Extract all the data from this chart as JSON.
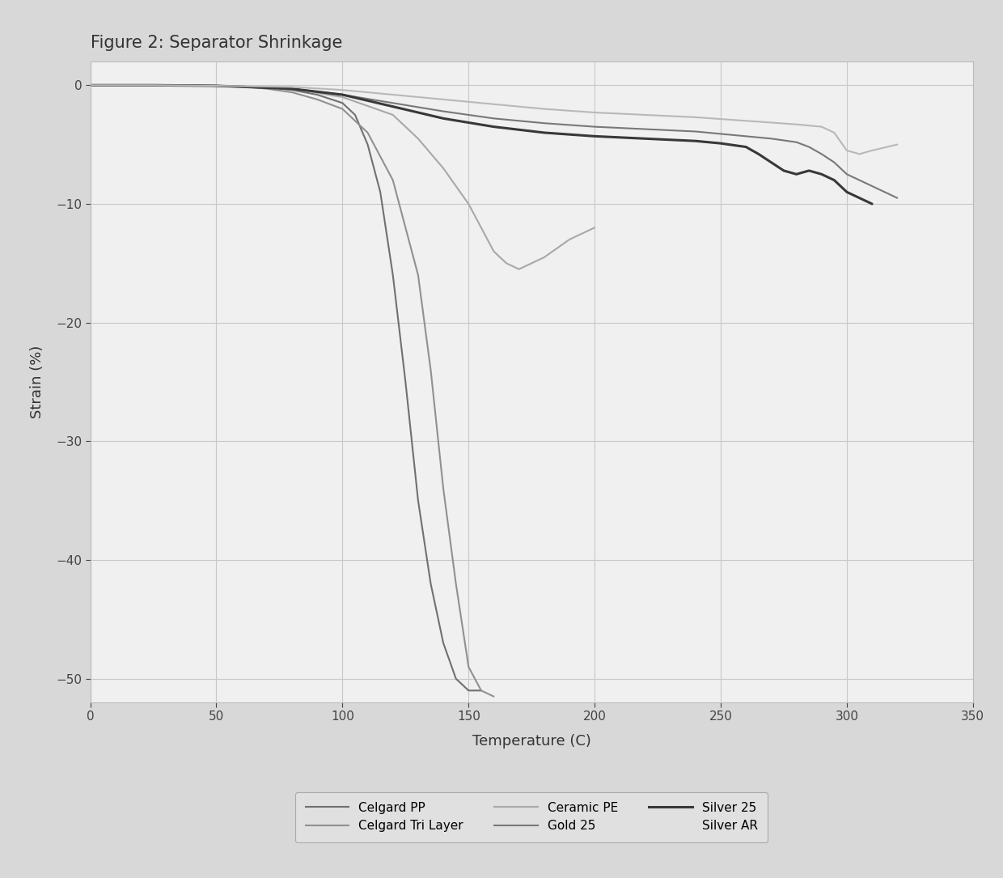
{
  "title": "Figure 2: Separator Shrinkage",
  "xlabel": "Temperature (C)",
  "ylabel": "Strain (%)",
  "xlim": [
    0,
    350
  ],
  "ylim": [
    -52,
    2
  ],
  "xticks": [
    0,
    50,
    100,
    150,
    200,
    250,
    300,
    350
  ],
  "yticks": [
    0,
    -10,
    -20,
    -30,
    -40,
    -50
  ],
  "fig_bg_color": "#d8d8d8",
  "plot_bg_color": "#f0f0f0",
  "grid_color": "#c8c8c8",
  "series": [
    {
      "name": "Celgard PP",
      "color": "#707070",
      "linewidth": 1.5,
      "x": [
        0,
        25,
        50,
        60,
        70,
        80,
        90,
        100,
        105,
        110,
        115,
        120,
        125,
        130,
        135,
        140,
        145,
        150,
        155
      ],
      "y": [
        0,
        0,
        -0.05,
        -0.1,
        -0.2,
        -0.4,
        -0.8,
        -1.5,
        -2.5,
        -5.0,
        -9.0,
        -16.0,
        -25.0,
        -35.0,
        -42.0,
        -47.0,
        -50.0,
        -51.0,
        -51.0
      ]
    },
    {
      "name": "Celgard Tri Layer",
      "color": "#909090",
      "linewidth": 1.5,
      "x": [
        0,
        25,
        50,
        60,
        70,
        80,
        90,
        100,
        110,
        120,
        130,
        135,
        140,
        145,
        150,
        155,
        160
      ],
      "y": [
        0,
        0,
        -0.05,
        -0.1,
        -0.3,
        -0.6,
        -1.2,
        -2.0,
        -4.0,
        -8.0,
        -16.0,
        -24.0,
        -34.0,
        -42.0,
        -49.0,
        -51.0,
        -51.5
      ]
    },
    {
      "name": "Ceramic PE",
      "color": "#a8a8a8",
      "linewidth": 1.5,
      "x": [
        0,
        25,
        50,
        80,
        100,
        120,
        130,
        140,
        150,
        155,
        160,
        165,
        170,
        175,
        180,
        190,
        200
      ],
      "y": [
        0,
        0,
        -0.05,
        -0.3,
        -1.0,
        -2.5,
        -4.5,
        -7.0,
        -10.0,
        -12.0,
        -14.0,
        -15.0,
        -15.5,
        -15.0,
        -14.5,
        -13.0,
        -12.0
      ]
    },
    {
      "name": "Gold 25",
      "color": "#787878",
      "linewidth": 1.5,
      "x": [
        0,
        25,
        50,
        80,
        100,
        120,
        140,
        160,
        180,
        200,
        220,
        240,
        250,
        260,
        270,
        280,
        285,
        290,
        295,
        300,
        310,
        320
      ],
      "y": [
        0,
        0,
        -0.05,
        -0.3,
        -0.8,
        -1.5,
        -2.2,
        -2.8,
        -3.2,
        -3.5,
        -3.7,
        -3.9,
        -4.1,
        -4.3,
        -4.5,
        -4.8,
        -5.2,
        -5.8,
        -6.5,
        -7.5,
        -8.5,
        -9.5
      ]
    },
    {
      "name": "Silver 25",
      "color": "#383838",
      "linewidth": 2.2,
      "x": [
        0,
        25,
        50,
        80,
        100,
        120,
        140,
        160,
        180,
        200,
        220,
        240,
        250,
        260,
        265,
        270,
        275,
        280,
        285,
        290,
        295,
        300,
        305,
        310
      ],
      "y": [
        0,
        0,
        -0.05,
        -0.3,
        -0.8,
        -1.8,
        -2.8,
        -3.5,
        -4.0,
        -4.3,
        -4.5,
        -4.7,
        -4.9,
        -5.2,
        -5.8,
        -6.5,
        -7.2,
        -7.5,
        -7.2,
        -7.5,
        -8.0,
        -9.0,
        -9.5,
        -10.0
      ]
    },
    {
      "name": "Silver AR",
      "color": "#b8b8b8",
      "linewidth": 1.5,
      "x": [
        0,
        25,
        50,
        80,
        100,
        120,
        140,
        160,
        180,
        200,
        220,
        240,
        260,
        280,
        290,
        295,
        300,
        305,
        310,
        320
      ],
      "y": [
        0,
        0,
        -0.05,
        -0.15,
        -0.4,
        -0.8,
        -1.2,
        -1.6,
        -2.0,
        -2.3,
        -2.5,
        -2.7,
        -3.0,
        -3.3,
        -3.5,
        -4.0,
        -5.5,
        -5.8,
        -5.5,
        -5.0
      ]
    }
  ]
}
